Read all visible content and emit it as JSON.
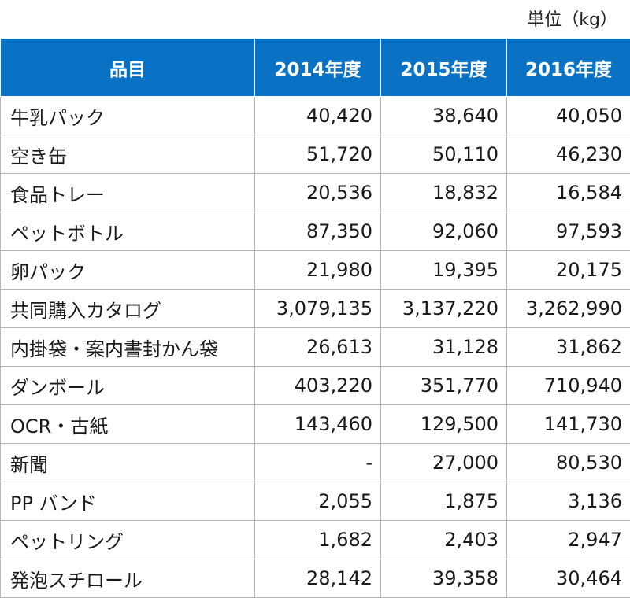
{
  "unit_label": "単位（kg）",
  "table": {
    "headers": [
      "品目",
      "2014年度",
      "2015年度",
      "2016年度"
    ],
    "rows": [
      {
        "item": "牛乳パック",
        "y2014": "40,420",
        "y2015": "38,640",
        "y2016": "40,050"
      },
      {
        "item": "空き缶",
        "y2014": "51,720",
        "y2015": "50,110",
        "y2016": "46,230"
      },
      {
        "item": "食品トレー",
        "y2014": "20,536",
        "y2015": "18,832",
        "y2016": "16,584"
      },
      {
        "item": "ペットボトル",
        "y2014": "87,350",
        "y2015": "92,060",
        "y2016": "97,593"
      },
      {
        "item": "卵パック",
        "y2014": "21,980",
        "y2015": "19,395",
        "y2016": "20,175"
      },
      {
        "item": "共同購入カタログ",
        "y2014": "3,079,135",
        "y2015": "3,137,220",
        "y2016": "3,262,990"
      },
      {
        "item": "内掛袋・案内書封かん袋",
        "y2014": "26,613",
        "y2015": "31,128",
        "y2016": "31,862"
      },
      {
        "item": "ダンボール",
        "y2014": "403,220",
        "y2015": "351,770",
        "y2016": "710,940"
      },
      {
        "item": "OCR・古紙",
        "y2014": "143,460",
        "y2015": "129,500",
        "y2016": "141,730"
      },
      {
        "item": "新聞",
        "y2014": "-",
        "y2015": "27,000",
        "y2016": "80,530"
      },
      {
        "item": "PP バンド",
        "y2014": "2,055",
        "y2015": "1,875",
        "y2016": "3,136"
      },
      {
        "item": "ペットリング",
        "y2014": "1,682",
        "y2015": "2,403",
        "y2016": "2,947"
      },
      {
        "item": "発泡スチロール",
        "y2014": "28,142",
        "y2015": "39,358",
        "y2016": "30,464"
      }
    ]
  },
  "colors": {
    "header_bg": "#0a72c4",
    "header_text": "#ffffff",
    "grid": "#b7b7b7"
  }
}
